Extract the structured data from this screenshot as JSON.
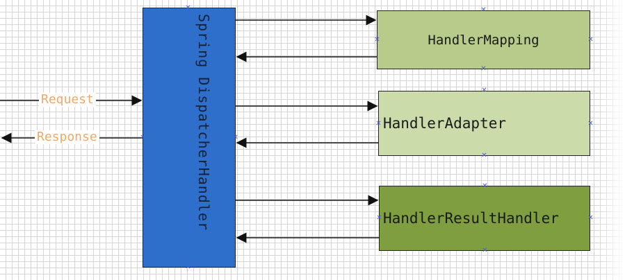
{
  "dispatcher": {
    "label": "Spring DispatcherHandler"
  },
  "handlers": {
    "mapping": {
      "label": "HandlerMapping"
    },
    "adapter": {
      "label": "HandlerAdapter"
    },
    "result": {
      "label": "HandlerResultHandler"
    }
  },
  "flows": {
    "request": "Request",
    "response": "Response"
  },
  "colors": {
    "dispatcher": "#2f6fcc",
    "mapping": "#b7cc8a",
    "adapter": "#cbdcaa",
    "result": "#7e9e40",
    "flow_label": "#f0a868",
    "handle": "#4c5cd8"
  }
}
